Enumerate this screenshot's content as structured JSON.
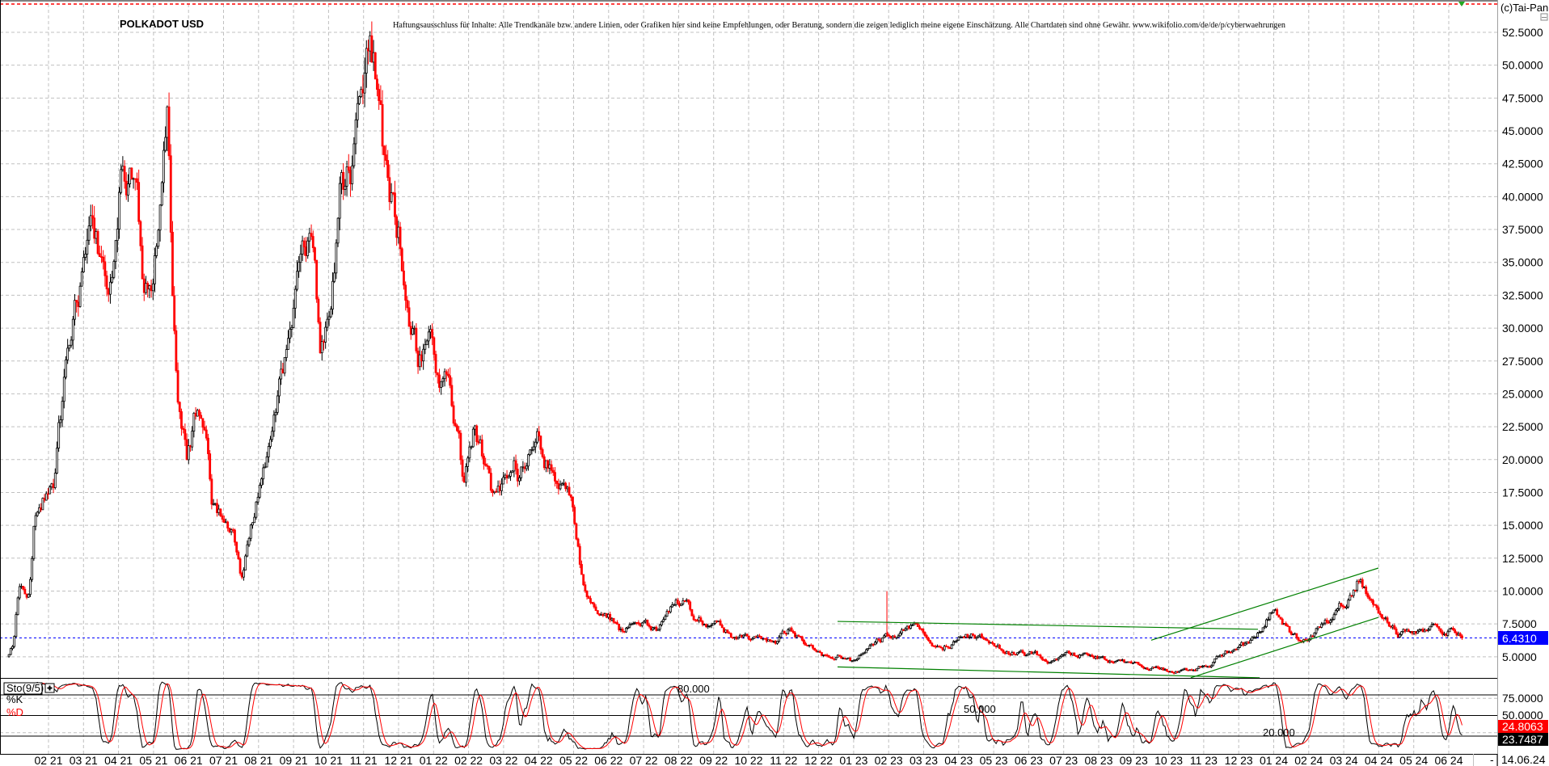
{
  "header": {
    "title": "POLKADOT USD",
    "disclaimer": "Haftungsausschluss für Inhalte: Alle Trendkanäle bzw. andere Linien, oder Grafiken hier sind keine Empfehlungen, oder Beratung, sondern die zeigen lediglich meine eigene Einschätzung. Alle Chartdaten sind ohne Gewähr.  www.wikifolio.com/de/de/p/cyberwaehrungen",
    "copyright": "(c)Tai-Pan"
  },
  "footer": {
    "date": "14.06.24",
    "minus": "-"
  },
  "colors": {
    "up": "#000000",
    "down": "#ff0000",
    "trend": "#008000",
    "current": "#0000ff",
    "k": "#000000",
    "d": "#ff0000",
    "grid": "#c0c0c0"
  },
  "chart_data": {
    "type": "candlestick",
    "title": "POLKADOT USD",
    "ylim": [
      3.5,
      55
    ],
    "price_ticks": [
      "52.5000",
      "50.0000",
      "47.5000",
      "45.0000",
      "42.5000",
      "40.0000",
      "37.5000",
      "35.0000",
      "32.5000",
      "30.0000",
      "27.5000",
      "25.0000",
      "22.5000",
      "20.0000",
      "17.5000",
      "15.0000",
      "12.5000",
      "10.0000",
      "7.5000",
      "5.0000"
    ],
    "current_price": "6.4310",
    "all_time_high": 54.8,
    "x_labels": [
      "02 21",
      "03 21",
      "04 21",
      "05 21",
      "06 21",
      "07 21",
      "08 21",
      "09 21",
      "10 21",
      "11 21",
      "12 21",
      "01 22",
      "02 22",
      "03 22",
      "04 22",
      "05 22",
      "06 22",
      "07 22",
      "08 22",
      "09 22",
      "10 22",
      "11 22",
      "12 22",
      "01 23",
      "02 23",
      "03 23",
      "04 23",
      "05 23",
      "06 23",
      "07 23",
      "08 23",
      "09 23",
      "10 23",
      "11 23",
      "12 23",
      "01 24",
      "02 24",
      "03 24",
      "04 24",
      "05 24",
      "06 24"
    ],
    "x_unit": "months since 02 21",
    "price_path": [
      [
        -1.13,
        5.0
      ],
      [
        -0.99,
        6
      ],
      [
        -0.85,
        10
      ],
      [
        -0.56,
        9.5
      ],
      [
        -0.42,
        15
      ],
      [
        -0.14,
        17
      ],
      [
        0.14,
        18
      ],
      [
        0.28,
        22
      ],
      [
        0.42,
        25
      ],
      [
        0.56,
        29
      ],
      [
        0.85,
        33
      ],
      [
        1.13,
        37
      ],
      [
        1.41,
        36
      ],
      [
        1.69,
        34
      ],
      [
        1.84,
        33
      ],
      [
        2.12,
        42
      ],
      [
        2.4,
        43
      ],
      [
        2.68,
        35
      ],
      [
        2.97,
        33
      ],
      [
        3.25,
        40
      ],
      [
        3.39,
        44
      ],
      [
        3.53,
        33
      ],
      [
        3.67,
        25
      ],
      [
        3.81,
        22
      ],
      [
        3.95,
        20
      ],
      [
        4.24,
        24
      ],
      [
        4.52,
        22
      ],
      [
        4.66,
        16
      ],
      [
        4.94,
        15.5
      ],
      [
        5.23,
        15
      ],
      [
        5.51,
        11
      ],
      [
        5.79,
        15
      ],
      [
        6.07,
        18
      ],
      [
        6.36,
        21
      ],
      [
        6.64,
        25
      ],
      [
        6.92,
        30
      ],
      [
        7.2,
        34
      ],
      [
        7.49,
        36
      ],
      [
        7.77,
        28
      ],
      [
        8.05,
        30
      ],
      [
        8.33,
        40
      ],
      [
        8.62,
        42
      ],
      [
        8.9,
        46
      ],
      [
        9.04,
        49
      ],
      [
        9.18,
        53
      ],
      [
        9.32,
        50
      ],
      [
        9.46,
        46
      ],
      [
        9.6,
        42
      ],
      [
        9.75,
        40
      ],
      [
        10.03,
        37
      ],
      [
        10.17,
        33
      ],
      [
        10.31,
        29
      ],
      [
        10.59,
        27
      ],
      [
        10.88,
        30
      ],
      [
        11.16,
        27
      ],
      [
        11.44,
        25
      ],
      [
        11.72,
        21
      ],
      [
        11.86,
        18
      ],
      [
        12.15,
        22
      ],
      [
        12.43,
        20
      ],
      [
        12.71,
        17
      ],
      [
        12.99,
        18
      ],
      [
        13.28,
        20
      ],
      [
        13.42,
        19
      ],
      [
        13.7,
        21
      ],
      [
        13.98,
        22
      ],
      [
        14.12,
        21
      ],
      [
        14.41,
        19
      ],
      [
        14.69,
        18
      ],
      [
        14.97,
        16
      ],
      [
        15.25,
        11
      ],
      [
        15.54,
        9
      ],
      [
        15.96,
        8.5
      ],
      [
        16.38,
        7
      ],
      [
        16.81,
        7.5
      ],
      [
        17.37,
        7
      ],
      [
        17.94,
        9
      ],
      [
        18.22,
        9.5
      ],
      [
        18.5,
        8
      ],
      [
        19.07,
        7.5
      ],
      [
        19.63,
        6.5
      ],
      [
        20.2,
        6.3
      ],
      [
        20.76,
        6.2
      ],
      [
        21.19,
        7
      ],
      [
        21.61,
        6
      ],
      [
        22.18,
        5.2
      ],
      [
        22.74,
        5.0
      ],
      [
        23.02,
        4.6
      ],
      [
        23.31,
        5.5
      ],
      [
        23.73,
        6.3
      ],
      [
        24.15,
        6.7
      ],
      [
        24.72,
        7.2
      ],
      [
        25.14,
        6.2
      ],
      [
        25.56,
        6.0
      ],
      [
        25.99,
        6.3
      ],
      [
        26.41,
        6.5
      ],
      [
        26.84,
        6.3
      ],
      [
        27.26,
        5.6
      ],
      [
        27.82,
        5.3
      ],
      [
        28.25,
        5.1
      ],
      [
        28.67,
        4.8
      ],
      [
        29.24,
        5.2
      ],
      [
        29.8,
        5.1
      ],
      [
        30.37,
        4.8
      ],
      [
        30.93,
        4.2
      ],
      [
        31.5,
        4.1
      ],
      [
        32.06,
        4.0
      ],
      [
        32.63,
        3.9
      ],
      [
        33.05,
        4.3
      ],
      [
        33.47,
        5.0
      ],
      [
        33.9,
        5.6
      ],
      [
        34.32,
        6.0
      ],
      [
        34.6,
        7.0
      ],
      [
        34.89,
        8.6
      ],
      [
        35.17,
        8.0
      ],
      [
        35.45,
        7.0
      ],
      [
        35.73,
        6.5
      ],
      [
        36.16,
        7.0
      ],
      [
        36.58,
        7.6
      ],
      [
        37.01,
        9.0
      ],
      [
        37.29,
        10.5
      ],
      [
        37.49,
        11.5
      ],
      [
        37.71,
        9.5
      ],
      [
        37.99,
        8.5
      ],
      [
        38.28,
        7.5
      ],
      [
        38.56,
        6.7
      ],
      [
        38.84,
        7.0
      ],
      [
        39.27,
        7.2
      ],
      [
        39.69,
        7.4
      ],
      [
        40.11,
        7.0
      ],
      [
        40.4,
        6.43
      ]
    ],
    "wick_spikes": [
      {
        "m": 23.95,
        "low": 6.5,
        "high": 10.0
      }
    ],
    "trendlines": [
      {
        "name": "upper-descending",
        "from": [
          22.54,
          7.69
        ],
        "to": [
          34.55,
          7.09
        ]
      },
      {
        "name": "lower-descending",
        "from": [
          22.54,
          4.23
        ],
        "to": [
          34.6,
          3.4
        ]
      },
      {
        "name": "channel-upper",
        "from": [
          31.5,
          6.26
        ],
        "to": [
          37.99,
          11.75
        ]
      },
      {
        "name": "channel-lower",
        "from": [
          32.63,
          3.4
        ],
        "to": [
          37.99,
          8.0
        ]
      }
    ],
    "indicator": {
      "name": "Sto(9/5)",
      "k_label": "%K",
      "d_label": "%D",
      "levels": [
        80,
        50,
        20
      ],
      "level_labels": [
        "80.000",
        "50.000",
        "20.000"
      ],
      "axis_ticks": [
        "75.0000",
        "50.0000"
      ],
      "k_value": "23.7487",
      "d_value": "24.8063",
      "ylim": [
        0,
        100
      ]
    }
  }
}
